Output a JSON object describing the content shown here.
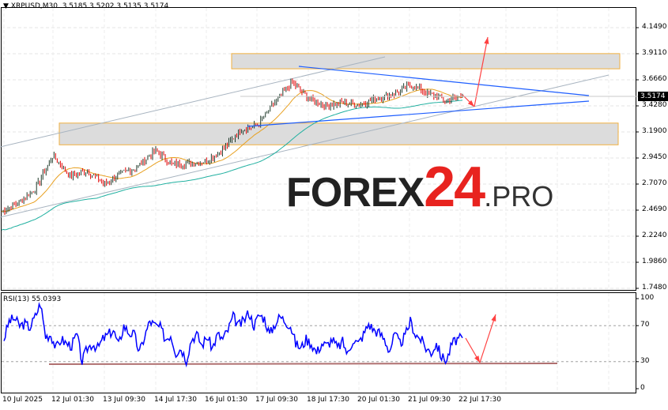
{
  "header": {
    "symbol": "XRPUSD,M30",
    "ohlc": "3.5185 3.5202 3.5135 3.5174",
    "menu_icon": "triangle-down-icon"
  },
  "price_axis": {
    "ticks": [
      "4.1490",
      "3.9110",
      "3.6660",
      "3.4280",
      "3.1900",
      "2.9450",
      "2.7070",
      "2.4690",
      "2.2240",
      "1.9860",
      "1.7480"
    ],
    "current_price": "3.5174"
  },
  "rsi": {
    "title": "RSI(13) 55.0393",
    "ticks": [
      "100",
      "70",
      "30",
      "0"
    ],
    "line_color": "#0000ff"
  },
  "time_axis": {
    "ticks": [
      "10 Jul 2025",
      "12 Jul 01:30",
      "13 Jul 09:30",
      "14 Jul 17:30",
      "16 Jul 01:30",
      "17 Jul 09:30",
      "18 Jul 17:30",
      "20 Jul 01:30",
      "21 Jul 09:30",
      "22 Jul 17:30"
    ]
  },
  "watermark": {
    "part1": "FOREX",
    "part2": "24",
    "part3": ".PRO"
  },
  "colors": {
    "bull": "#1b7a3a",
    "bear": "#e00000",
    "ma_fast": "#e8a020",
    "ma_slow": "#20b0a0",
    "trend_blue": "#1e5eff",
    "arrow": "#ff4040",
    "zone_border": "#f0b040"
  },
  "chart_data": {
    "type": "line",
    "symbol": "XRPUSD",
    "timeframe": "M30",
    "ylim": [
      1.748,
      4.149
    ],
    "price_path": [
      2.455,
      2.54,
      2.67,
      2.97,
      2.78,
      2.83,
      2.71,
      2.8,
      2.87,
      3.02,
      2.89,
      2.9,
      2.92,
      3.03,
      3.21,
      3.25,
      3.46,
      3.64,
      3.5,
      3.43,
      3.46,
      3.44,
      3.5,
      3.54,
      3.62,
      3.54,
      3.48,
      3.5174
    ],
    "resistance_zone": [
      3.77,
      3.91
    ],
    "support_zone": [
      3.07,
      3.27
    ],
    "rsi_values": [
      55,
      75,
      78,
      70,
      72,
      68,
      80,
      95,
      58,
      60,
      45,
      55,
      50,
      48,
      60,
      30,
      45,
      50,
      45,
      55,
      60,
      65,
      48,
      70,
      62,
      60,
      40,
      58,
      75,
      70,
      68,
      55,
      60,
      40,
      45,
      32,
      55,
      60,
      48,
      58,
      45,
      60,
      55,
      65,
      80,
      70,
      75,
      85,
      70,
      82,
      78,
      60,
      72,
      80,
      75,
      70,
      50,
      45,
      55,
      50,
      40,
      50,
      48,
      55,
      45,
      52,
      38,
      55,
      50,
      60,
      72,
      65,
      62,
      55,
      42,
      60,
      50,
      58,
      75,
      60,
      55,
      45,
      40,
      50,
      35,
      32,
      50,
      55,
      55
    ],
    "rsi_levels": [
      70,
      30
    ]
  }
}
